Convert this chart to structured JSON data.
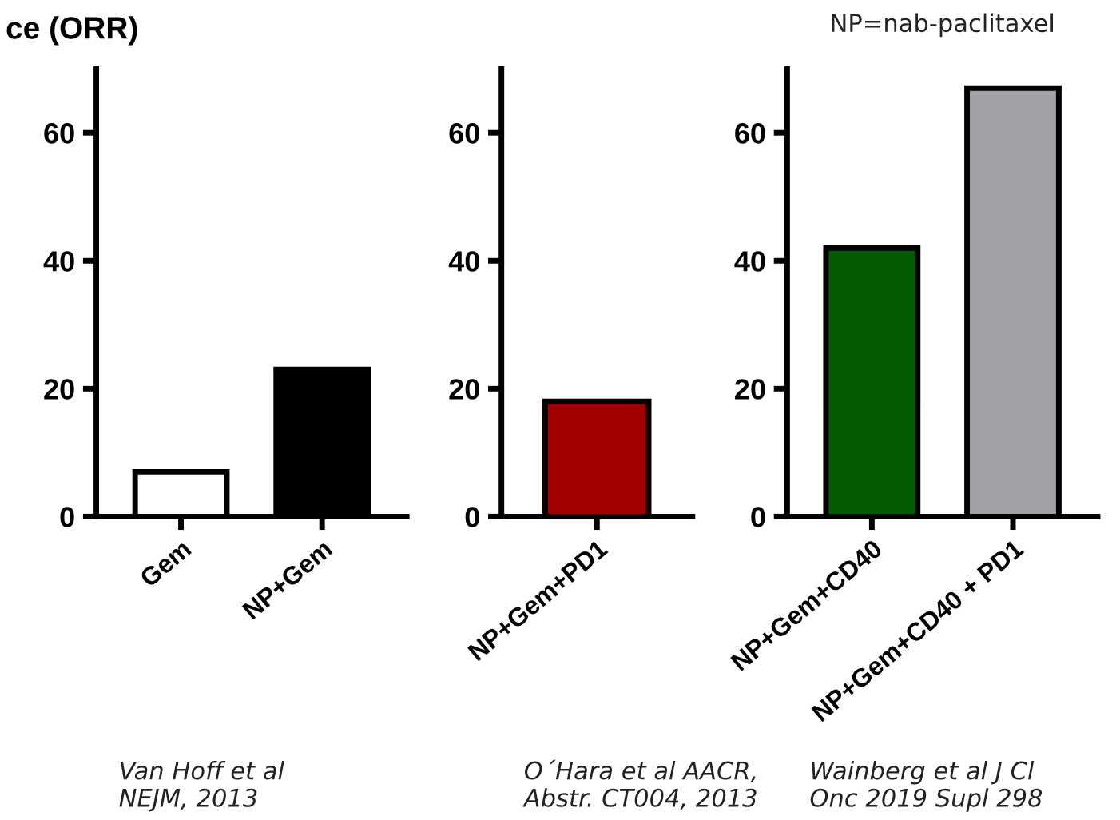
{
  "chart_data": [
    {
      "type": "bar",
      "title": "ce (ORR)",
      "categories": [
        "Gem",
        "NP+Gem"
      ],
      "values": [
        7,
        23
      ],
      "colors": [
        "#ffffff",
        "#000000"
      ],
      "ylim": [
        0,
        70
      ],
      "yticks": [
        0,
        20,
        40,
        60
      ],
      "grid": false,
      "legend": false,
      "annotations": [
        "Van Hoff et al\nNEJM, 2013"
      ]
    },
    {
      "type": "bar",
      "categories": [
        "NP+Gem+PD1"
      ],
      "values": [
        18
      ],
      "colors": [
        "#a00000"
      ],
      "ylim": [
        0,
        70
      ],
      "yticks": [
        0,
        20,
        40,
        60
      ],
      "grid": false,
      "legend": false,
      "annotations": [
        "O´Hara et al AACR,\nAbstr. CT004, 2013"
      ]
    },
    {
      "type": "bar",
      "categories": [
        "NP+Gem+CD40",
        "NP+Gem+CD40 + PD1"
      ],
      "values": [
        42,
        67
      ],
      "colors": [
        "#035a03",
        "#a2a1a6"
      ],
      "ylim": [
        0,
        70
      ],
      "yticks": [
        0,
        20,
        40,
        60
      ],
      "grid": false,
      "legend": false,
      "annotations": [
        "NP=nab-paclitaxel",
        "Wainberg et al J Cl\nOnc 2019 Supl 298"
      ]
    }
  ]
}
